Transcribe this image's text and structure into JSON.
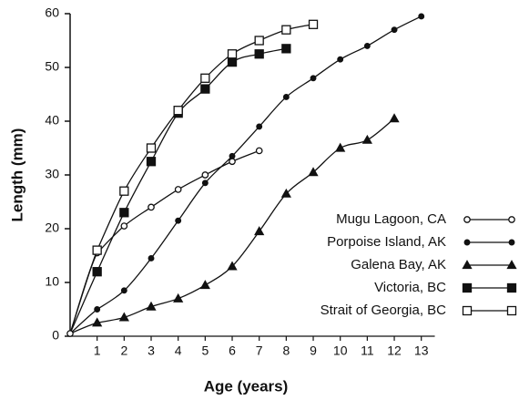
{
  "chart_data": {
    "type": "line",
    "x_label": "Age (years)",
    "y_label": "Length (mm)",
    "xlim": [
      0,
      13.5
    ],
    "ylim": [
      0,
      60
    ],
    "xticks": [
      1,
      2,
      3,
      4,
      5,
      6,
      7,
      8,
      9,
      10,
      11,
      12,
      13
    ],
    "yticks": [
      0,
      10,
      20,
      30,
      40,
      50,
      60
    ],
    "origin_point": {
      "x": 0,
      "y": 0.5,
      "marker": "open-circle"
    },
    "color": "#111111",
    "series": [
      {
        "name": "Mugu Lagoon, CA",
        "marker": "open-circle",
        "x": [
          1,
          2,
          3,
          4,
          5,
          6,
          7
        ],
        "values": [
          15.5,
          20.5,
          24,
          27.3,
          30,
          32.5,
          34.5
        ]
      },
      {
        "name": "Porpoise Island, AK",
        "marker": "filled-circle",
        "x": [
          1,
          2,
          3,
          4,
          5,
          6,
          7,
          8,
          9,
          10,
          11,
          12,
          13
        ],
        "values": [
          5,
          8.5,
          14.5,
          21.5,
          28.5,
          33.5,
          39,
          44.5,
          48,
          51.5,
          54,
          57,
          59.5
        ]
      },
      {
        "name": "Galena Bay, AK",
        "marker": "triangle",
        "x": [
          1,
          2,
          3,
          4,
          5,
          6,
          7,
          8,
          9,
          10,
          11,
          12
        ],
        "values": [
          2.5,
          3.5,
          5.5,
          7,
          9.5,
          13,
          19.5,
          26.5,
          30.5,
          35,
          36.5,
          40.5
        ]
      },
      {
        "name": "Victoria, BC",
        "marker": "filled-square",
        "x": [
          1,
          2,
          3,
          4,
          5,
          6,
          7,
          8
        ],
        "values": [
          12,
          23,
          32.5,
          41.5,
          46,
          51,
          52.5,
          53.5
        ]
      },
      {
        "name": "Strait of Georgia, BC",
        "marker": "open-square",
        "x": [
          1,
          2,
          3,
          4,
          5,
          6,
          7,
          8,
          9
        ],
        "values": [
          16,
          27,
          35,
          42,
          48,
          52.5,
          55,
          57,
          58
        ]
      }
    ]
  }
}
